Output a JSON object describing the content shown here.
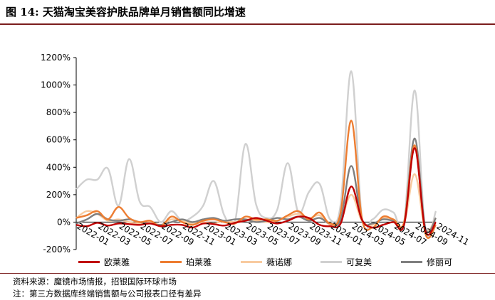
{
  "figure": {
    "title": "图 14: 天猫淘宝美容护肤品牌单月销售额同比增速",
    "source": "资料来源：魔镜市场情报，招银国际环球市场",
    "note": "注：第三方数据库终端销售额与公司报表口径有差异"
  },
  "chart_data": {
    "type": "line",
    "x": [
      "2022-01",
      "2022-02",
      "2022-03",
      "2022-04",
      "2022-05",
      "2022-06",
      "2022-07",
      "2022-08",
      "2022-09",
      "2022-10",
      "2022-11",
      "2022-12",
      "2023-01",
      "2023-02",
      "2023-03",
      "2023-04",
      "2023-05",
      "2023-06",
      "2023-07",
      "2023-08",
      "2023-09",
      "2023-10",
      "2023-11",
      "2023-12",
      "2024-01",
      "2024-02",
      "2024-03",
      "2024-04",
      "2024-05",
      "2024-06",
      "2024-07",
      "2024-08",
      "2024-09",
      "2024-10",
      "2024-11"
    ],
    "x_tick_labels": [
      "2022-01",
      "2022-03",
      "2022-05",
      "2022-07",
      "2022-09",
      "2022-11",
      "2023-01",
      "2023-03",
      "2023-05",
      "2023-07",
      "2023-09",
      "2023-11",
      "2024-01",
      "2024-03",
      "2024-05",
      "2024-07",
      "2024-09",
      "2024-11"
    ],
    "y_ticks": [
      "1200%",
      "1000%",
      "800%",
      "600%",
      "400%",
      "200%",
      "0%",
      "-200%"
    ],
    "ylim": [
      -200,
      1200
    ],
    "grid": false,
    "legend_position": "bottom",
    "series": [
      {
        "name": "欧莱雅",
        "color": "#c00000",
        "values": [
          -20,
          -30,
          -5,
          -25,
          -10,
          -15,
          -20,
          -10,
          -30,
          -20,
          -20,
          -40,
          -10,
          -15,
          -25,
          -5,
          10,
          30,
          10,
          -10,
          10,
          40,
          30,
          -20,
          -30,
          -10,
          260,
          20,
          -40,
          -20,
          0,
          -20,
          540,
          -60,
          0
        ]
      },
      {
        "name": "珀莱雅",
        "color": "#ed7d31",
        "values": [
          30,
          50,
          80,
          20,
          110,
          30,
          0,
          10,
          -30,
          40,
          0,
          -20,
          10,
          20,
          0,
          -10,
          40,
          20,
          20,
          10,
          50,
          80,
          20,
          70,
          -10,
          70,
          740,
          30,
          -40,
          40,
          20,
          0,
          560,
          -80,
          -20
        ]
      },
      {
        "name": "薇诺娜",
        "color": "#f8cba0",
        "values": [
          30,
          80,
          60,
          10,
          20,
          0,
          -10,
          0,
          -20,
          20,
          10,
          -10,
          0,
          -10,
          10,
          0,
          20,
          10,
          0,
          10,
          40,
          60,
          30,
          50,
          -20,
          10,
          200,
          10,
          -20,
          30,
          10,
          -10,
          350,
          -50,
          30
        ]
      },
      {
        "name": "可复美",
        "color": "#d0d0d0",
        "values": [
          240,
          310,
          310,
          390,
          120,
          460,
          150,
          110,
          0,
          80,
          10,
          40,
          120,
          300,
          50,
          0,
          570,
          130,
          30,
          90,
          430,
          70,
          220,
          280,
          20,
          130,
          1100,
          40,
          20,
          90,
          70,
          0,
          960,
          -60,
          80
        ]
      },
      {
        "name": "修丽可",
        "color": "#7f7f7f",
        "values": [
          -10,
          20,
          60,
          20,
          10,
          20,
          0,
          -10,
          -20,
          0,
          20,
          0,
          20,
          30,
          10,
          20,
          20,
          0,
          10,
          30,
          20,
          40,
          10,
          30,
          -10,
          20,
          410,
          20,
          -10,
          20,
          10,
          0,
          610,
          -40,
          30
        ]
      }
    ]
  }
}
